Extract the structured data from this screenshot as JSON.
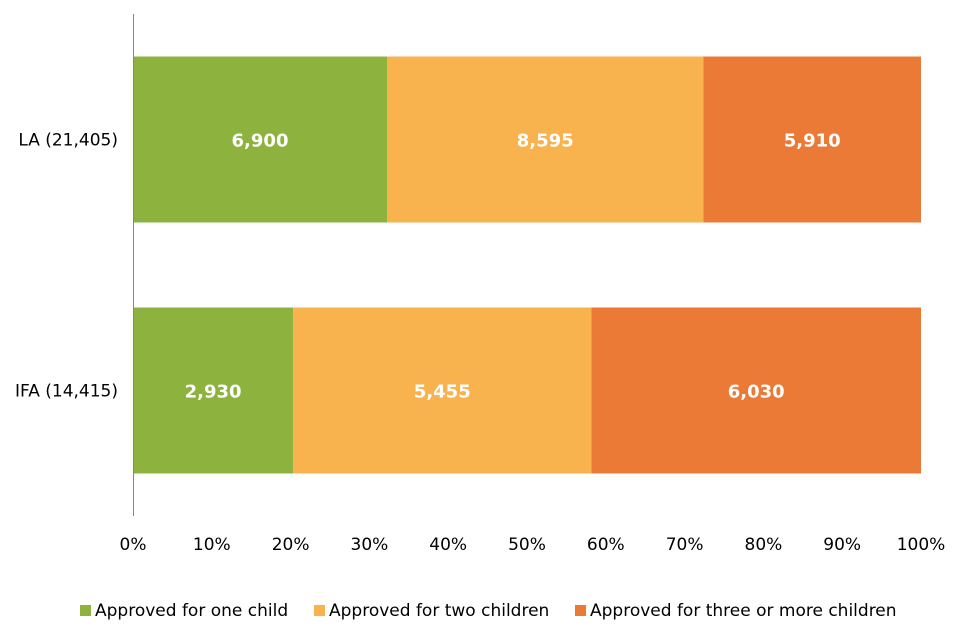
{
  "chart_data": {
    "type": "bar",
    "orientation": "horizontal",
    "stacked": "percent",
    "categories": [
      "LA (21,405)",
      "IFA (14,415)"
    ],
    "series": [
      {
        "name": "Approved for one child",
        "values": [
          6900,
          2930
        ],
        "labels": [
          "6,900",
          "2,930"
        ],
        "color": "#8DB33E"
      },
      {
        "name": "Approved for two children",
        "values": [
          8595,
          5455
        ],
        "labels": [
          "8,595",
          "5,455"
        ],
        "color": "#F8B24E"
      },
      {
        "name": "Approved for three or more children",
        "values": [
          5910,
          6030
        ],
        "labels": [
          "5,910",
          "6,030"
        ],
        "color": "#EC7A37"
      }
    ],
    "x_ticks": [
      "0%",
      "10%",
      "20%",
      "30%",
      "40%",
      "50%",
      "60%",
      "70%",
      "80%",
      "90%",
      "100%"
    ],
    "xlim": [
      0,
      100
    ],
    "title": "",
    "xlabel": "",
    "ylabel": "",
    "grid": false,
    "legend_position": "bottom"
  }
}
